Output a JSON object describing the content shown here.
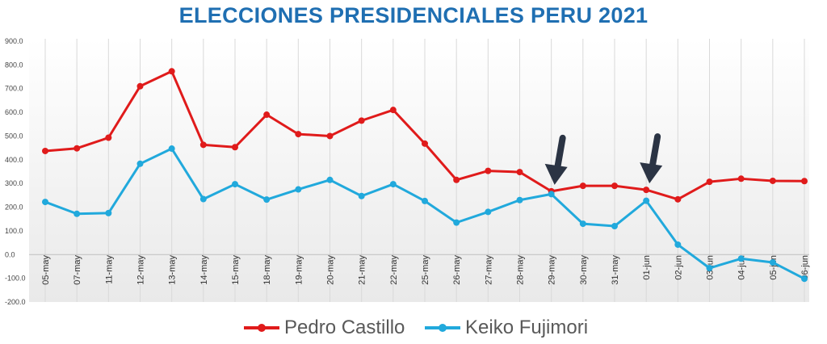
{
  "chart_data": {
    "type": "line",
    "title": "ELECCIONES PRESIDENCIALES  PERU 2021",
    "categories": [
      "05-may",
      "07-may",
      "11-may",
      "12-may",
      "13-may",
      "14-may",
      "15-may",
      "18-may",
      "19-may",
      "20-may",
      "21-may",
      "22-may",
      "25-may",
      "26-may",
      "27-may",
      "28-may",
      "29-may",
      "30-may",
      "31-may",
      "01-jun",
      "02-jun",
      "03-jun",
      "04-jun",
      "05-jun",
      "06-jun"
    ],
    "yticks": [
      "-200.0",
      "-100.0",
      "0.0",
      "100.0",
      "200.0",
      "300.0",
      "400.0",
      "500.0",
      "600.0",
      "700.0",
      "800.0",
      "900.0"
    ],
    "ylim": [
      -200,
      900
    ],
    "grid": "vertical",
    "legend_position": "bottom",
    "series": [
      {
        "name": "Pedro Castillo",
        "color": "#e01b1b",
        "values": [
          437,
          448,
          493,
          710,
          773,
          463,
          453,
          590,
          508,
          500,
          565,
          610,
          468,
          315,
          353,
          348,
          267,
          290,
          290,
          273,
          233,
          307,
          320,
          311,
          310
        ]
      },
      {
        "name": "Keiko Fujimori",
        "color": "#21a9dc",
        "values": [
          222,
          172,
          175,
          383,
          447,
          234,
          297,
          232,
          275,
          315,
          247,
          297,
          226,
          135,
          180,
          230,
          255,
          130,
          120,
          227,
          42,
          -57,
          -17,
          -33,
          -102
        ]
      }
    ],
    "annotations": [
      {
        "type": "arrow",
        "target_category": "29-may",
        "target_value": 267,
        "color": "#2b3444",
        "icon": "arrow-down-icon"
      },
      {
        "type": "arrow",
        "target_category": "01-jun",
        "target_value": 273,
        "color": "#2b3444",
        "icon": "arrow-down-icon"
      }
    ]
  }
}
